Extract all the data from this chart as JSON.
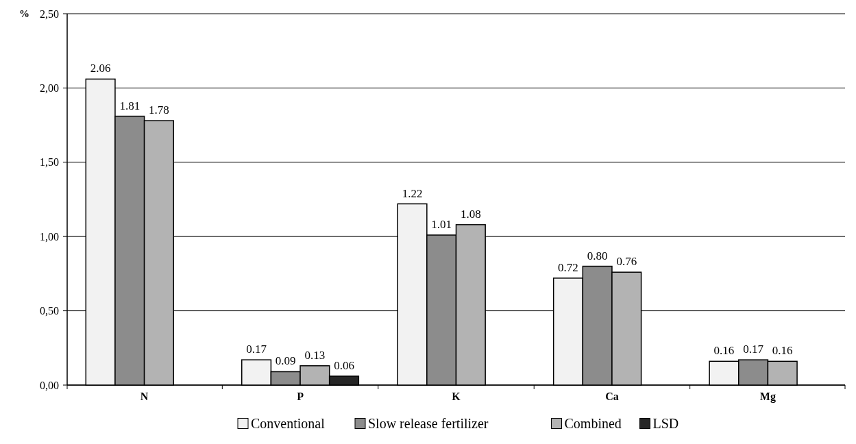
{
  "chart_data": {
    "type": "bar",
    "ylabel": "%",
    "categories": [
      "N",
      "P",
      "K",
      "Ca",
      "Mg"
    ],
    "series": [
      {
        "name": "Conventional",
        "color": "#f2f2f2",
        "values": [
          2.06,
          0.17,
          1.22,
          0.72,
          0.16
        ],
        "value_labels": [
          "2.06",
          "0.17",
          "1.22",
          "0.72",
          "0.16"
        ]
      },
      {
        "name": "Slow release fertilizer",
        "color": "#8c8c8c",
        "values": [
          1.81,
          0.09,
          1.01,
          0.8,
          0.17
        ],
        "value_labels": [
          "1.81",
          "0.09",
          "1.01",
          "0.80",
          "0.17"
        ]
      },
      {
        "name": "Combined",
        "color": "#b3b3b3",
        "values": [
          1.78,
          0.13,
          1.08,
          0.76,
          0.16
        ],
        "value_labels": [
          "1.78",
          "0.13",
          "1.08",
          "0.76",
          "0.16"
        ]
      },
      {
        "name": "LSD",
        "color": "#262626",
        "values": [
          null,
          0.06,
          null,
          null,
          null
        ],
        "value_labels": [
          null,
          "0.06",
          null,
          null,
          null
        ]
      }
    ],
    "ylim": [
      0,
      2.5
    ],
    "yticks": [
      {
        "value": 0,
        "label": "0,00"
      },
      {
        "value": 0.5,
        "label": "0,50"
      },
      {
        "value": 1,
        "label": "1,00"
      },
      {
        "value": 1.5,
        "label": "1,50"
      },
      {
        "value": 2,
        "label": "2,00"
      },
      {
        "value": 2.5,
        "label": "2,50"
      }
    ],
    "grid": "y",
    "legend": "bottom"
  }
}
